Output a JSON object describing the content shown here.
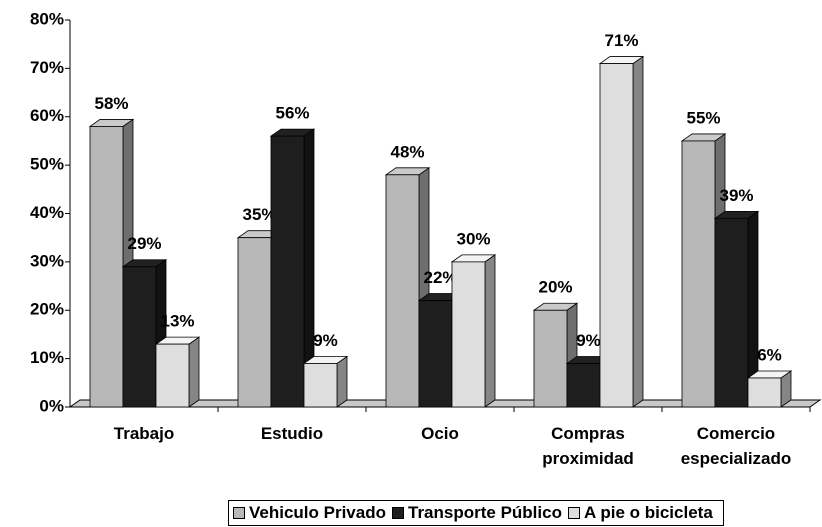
{
  "chart_data": {
    "type": "bar3d",
    "categories": [
      "Trabajo",
      "Estudio",
      "Ocio",
      "Compras proximidad",
      "Comercio especializado"
    ],
    "series": [
      {
        "name": "Vehiculo Privado",
        "color": "#b8b8b8",
        "values": [
          58,
          35,
          48,
          20,
          55
        ],
        "value_labels": [
          "58%",
          "35%",
          "48%",
          "20%",
          "55%"
        ]
      },
      {
        "name": "Transporte Público",
        "color": "#1e1e1e",
        "values": [
          29,
          56,
          22,
          9,
          39
        ],
        "value_labels": [
          "29%",
          "56%",
          "22%",
          "9%",
          "39%"
        ]
      },
      {
        "name": "A pie o bicicleta",
        "color": "#dedede",
        "values": [
          13,
          9,
          30,
          71,
          6
        ],
        "value_labels": [
          "13%",
          "9%",
          "30%",
          "71%",
          "6%"
        ]
      }
    ],
    "ylim": [
      0,
      80
    ],
    "yticks": [
      {
        "value": 0,
        "label": "0%"
      },
      {
        "value": 10,
        "label": "10%"
      },
      {
        "value": 20,
        "label": "20%"
      },
      {
        "value": 30,
        "label": "30%"
      },
      {
        "value": 40,
        "label": "40%"
      },
      {
        "value": 50,
        "label": "50%"
      },
      {
        "value": 60,
        "label": "60%"
      },
      {
        "value": 70,
        "label": "70%"
      },
      {
        "value": 80,
        "label": "80%"
      }
    ],
    "legend": "bottom"
  }
}
